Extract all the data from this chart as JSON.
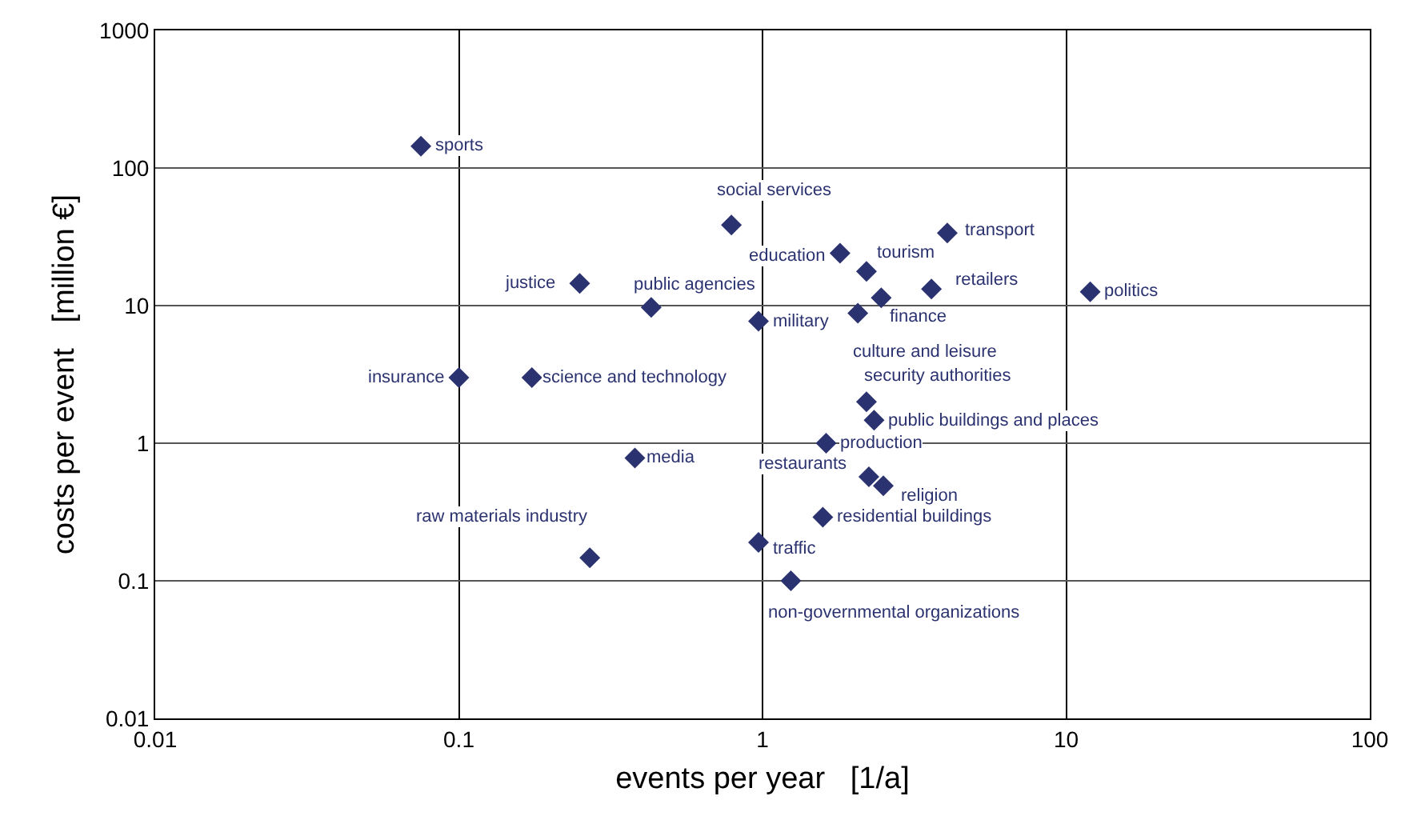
{
  "chart_data": {
    "type": "scatter",
    "xlabel": "events per year   [1/a]",
    "ylabel": "costs per event   [million €]",
    "log": "xy",
    "xlim": [
      0.01,
      100
    ],
    "ylim": [
      0.01,
      1000
    ],
    "xticks": [
      0.01,
      0.1,
      1,
      10,
      100
    ],
    "yticks": [
      0.01,
      0.1,
      1,
      10,
      100,
      1000
    ],
    "grid": true,
    "legend": false,
    "marker": "diamond",
    "series": [
      {
        "name": "sports",
        "color": "#2b3270",
        "x": [
          0.075
        ],
        "values": [
          144
        ]
      },
      {
        "name": "social services",
        "color": "#2b3270",
        "x": [
          0.79
        ],
        "values": [
          38.5
        ]
      },
      {
        "name": "justice",
        "color": "#2b3270",
        "x": [
          0.25
        ],
        "values": [
          14.5
        ]
      },
      {
        "name": "public agencies",
        "color": "#2b3270",
        "x": [
          0.43
        ],
        "values": [
          9.7
        ]
      },
      {
        "name": "military",
        "color": "#2b3270",
        "x": [
          0.97
        ],
        "values": [
          7.7
        ]
      },
      {
        "name": "insurance",
        "color": "#2b3270",
        "x": [
          0.1
        ],
        "values": [
          3
        ]
      },
      {
        "name": "science and technology",
        "color": "#2b3270",
        "x": [
          0.174
        ],
        "values": [
          3
        ]
      },
      {
        "name": "media",
        "color": "#2b3270",
        "x": [
          0.38
        ],
        "values": [
          0.78
        ]
      },
      {
        "name": "education",
        "color": "#2b3270",
        "x": [
          1.8
        ],
        "values": [
          24
        ]
      },
      {
        "name": "tourism",
        "color": "#2b3270",
        "x": [
          2.2
        ],
        "values": [
          17.7
        ]
      },
      {
        "name": "transport",
        "color": "#2b3270",
        "x": [
          4.06
        ],
        "values": [
          33.7
        ]
      },
      {
        "name": "finance",
        "color": "#2b3270",
        "x": [
          2.46
        ],
        "values": [
          11.4
        ]
      },
      {
        "name": "retailers",
        "color": "#2b3270",
        "x": [
          3.6
        ],
        "values": [
          13.2
        ]
      },
      {
        "name": "politics",
        "color": "#2b3270",
        "x": [
          12
        ],
        "values": [
          12.6
        ]
      },
      {
        "name": "culture and leisure",
        "color": "#2b3270",
        "x": [
          2.06
        ],
        "values": [
          8.8
        ]
      },
      {
        "name": "security authorities",
        "color": "#2b3270",
        "x": [
          2.2
        ],
        "values": [
          2
        ]
      },
      {
        "name": "public buildings and places",
        "color": "#2b3270",
        "x": [
          2.33
        ],
        "values": [
          1.47
        ]
      },
      {
        "name": "production",
        "color": "#2b3270",
        "x": [
          1.62
        ],
        "values": [
          1
        ]
      },
      {
        "name": "restaurants",
        "color": "#2b3270",
        "x": [
          2.24
        ],
        "values": [
          0.57
        ]
      },
      {
        "name": "religion",
        "color": "#2b3270",
        "x": [
          2.5
        ],
        "values": [
          0.49
        ]
      },
      {
        "name": "residential buildings",
        "color": "#2b3270",
        "x": [
          1.58
        ],
        "values": [
          0.29
        ]
      },
      {
        "name": "traffic",
        "color": "#2b3270",
        "x": [
          0.97
        ],
        "values": [
          0.19
        ]
      },
      {
        "name": "raw materials industry",
        "color": "#2b3270",
        "x": [
          0.27
        ],
        "values": [
          0.147
        ]
      },
      {
        "name": "non-governmental organizations",
        "color": "#2b3270",
        "x": [
          1.24
        ],
        "values": [
          0.1
        ]
      }
    ]
  }
}
